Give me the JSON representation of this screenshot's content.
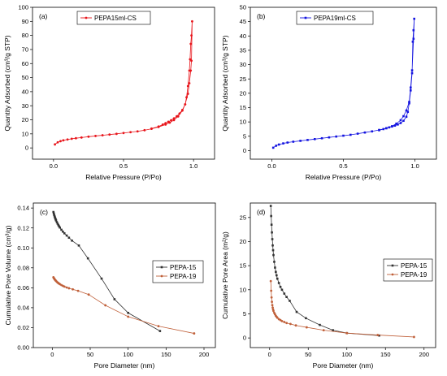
{
  "chart_data": [
    {
      "type": "line",
      "panel_label": "(a)",
      "xlabel": "Relative Pressure (P/Po)",
      "ylabel": "Quantity Adsorbed (cm³/g STP)",
      "xlim": [
        -0.15,
        1.15
      ],
      "ylim": [
        -8,
        100
      ],
      "xticks": [
        0.0,
        0.5,
        1.0
      ],
      "xtick_labels": [
        "0.0",
        "0.5",
        "1.0"
      ],
      "yticks": [
        0,
        10,
        20,
        30,
        40,
        50,
        60,
        70,
        80,
        90,
        100
      ],
      "ytick_labels": [
        "0",
        "10",
        "20",
        "30",
        "40",
        "50",
        "60",
        "70",
        "80",
        "90",
        "100"
      ],
      "legend_position": "top-center",
      "series": [
        {
          "name": "PEPA15ml-CS",
          "color": "#e8151b",
          "marker": "circle",
          "x": [
            0.01,
            0.03,
            0.05,
            0.07,
            0.1,
            0.13,
            0.16,
            0.2,
            0.25,
            0.3,
            0.35,
            0.4,
            0.45,
            0.5,
            0.55,
            0.6,
            0.65,
            0.7,
            0.75,
            0.8,
            0.83,
            0.86,
            0.89,
            0.92,
            0.94,
            0.96,
            0.97,
            0.98,
            0.985,
            0.99,
            0.985,
            0.98,
            0.975,
            0.97,
            0.96,
            0.95,
            0.94,
            0.92,
            0.9,
            0.88,
            0.86,
            0.84,
            0.82,
            0.8,
            0.78,
            0.75,
            0.7
          ],
          "y": [
            2.5,
            4.0,
            4.8,
            5.4,
            6.0,
            6.5,
            6.9,
            7.4,
            8.0,
            8.5,
            9.0,
            9.5,
            10.0,
            10.6,
            11.2,
            11.8,
            12.6,
            13.6,
            14.9,
            16.6,
            18.0,
            19.8,
            22.4,
            26.5,
            31.0,
            38.5,
            46.0,
            55.0,
            62.0,
            90.0,
            80.0,
            74.0,
            63.0,
            55.0,
            44.0,
            36.0,
            31.0,
            27.0,
            24.5,
            22.5,
            21.0,
            19.7,
            18.6,
            17.6,
            16.6,
            15.2,
            13.8
          ]
        }
      ]
    },
    {
      "type": "line",
      "panel_label": "(b)",
      "xlabel": "Relative Pressure (P/Po)",
      "ylabel": "Quantity Adsorbed (cm³/g STP)",
      "xlim": [
        -0.15,
        1.15
      ],
      "ylim": [
        -3,
        50
      ],
      "xticks": [
        0.0,
        0.5,
        1.0
      ],
      "xtick_labels": [
        "0.0",
        "0.5",
        "1.0"
      ],
      "yticks": [
        0,
        5,
        10,
        15,
        20,
        25,
        30,
        35,
        40,
        45,
        50
      ],
      "ytick_labels": [
        "0",
        "5",
        "10",
        "15",
        "20",
        "25",
        "30",
        "35",
        "40",
        "45",
        "50"
      ],
      "legend_position": "top-center",
      "series": [
        {
          "name": "PEPA19ml-CS",
          "color": "#1515e0",
          "marker": "square",
          "x": [
            0.01,
            0.03,
            0.05,
            0.08,
            0.11,
            0.15,
            0.2,
            0.25,
            0.3,
            0.35,
            0.4,
            0.45,
            0.5,
            0.55,
            0.6,
            0.65,
            0.7,
            0.75,
            0.8,
            0.84,
            0.87,
            0.9,
            0.92,
            0.94,
            0.96,
            0.97,
            0.98,
            0.99,
            0.995,
            0.99,
            0.985,
            0.98,
            0.97,
            0.96,
            0.95,
            0.94,
            0.92,
            0.9,
            0.88,
            0.86,
            0.84,
            0.82,
            0.8,
            0.78,
            0.75
          ],
          "y": [
            1.0,
            1.7,
            2.1,
            2.5,
            2.8,
            3.1,
            3.4,
            3.7,
            4.0,
            4.3,
            4.6,
            4.9,
            5.2,
            5.5,
            5.9,
            6.3,
            6.7,
            7.2,
            7.8,
            8.5,
            9.4,
            10.6,
            12.0,
            14.0,
            17.0,
            22.0,
            28.0,
            39.0,
            46.0,
            42.0,
            38.0,
            27.0,
            21.0,
            16.5,
            13.5,
            11.8,
            10.4,
            9.6,
            9.1,
            8.7,
            8.4,
            8.1,
            7.8,
            7.5,
            7.1
          ]
        }
      ]
    },
    {
      "type": "line",
      "panel_label": "(c)",
      "xlabel": "Pore Diameter (nm)",
      "ylabel": "Cumulative Pore Volume (cm³/g)",
      "xlim": [
        -25,
        215
      ],
      "ylim": [
        0.0,
        0.145
      ],
      "xticks": [
        0,
        50,
        100,
        150,
        200
      ],
      "xtick_labels": [
        "0",
        "50",
        "100",
        "150",
        "200"
      ],
      "yticks": [
        0.0,
        0.02,
        0.04,
        0.06,
        0.08,
        0.1,
        0.12,
        0.14
      ],
      "ytick_labels": [
        "0.00",
        "0.02",
        "0.04",
        "0.06",
        "0.08",
        "0.10",
        "0.12",
        "0.14"
      ],
      "legend_position": "middle-right",
      "series": [
        {
          "name": "PEPA-15",
          "color": "#333333",
          "marker": "square",
          "x": [
            1.5,
            2.0,
            2.5,
            3.0,
            3.5,
            4.0,
            4.5,
            5.0,
            6.0,
            7.0,
            8.0,
            9.0,
            10.0,
            12.0,
            14.0,
            16.0,
            19.0,
            22.0,
            26.0,
            35.0,
            47.0,
            65.0,
            82.0,
            100.0,
            142.0
          ],
          "y": [
            0.136,
            0.1345,
            0.133,
            0.1318,
            0.1306,
            0.1295,
            0.1285,
            0.1275,
            0.1258,
            0.1243,
            0.1229,
            0.1216,
            0.1204,
            0.1182,
            0.1163,
            0.1146,
            0.1124,
            0.1102,
            0.1073,
            0.1024,
            0.0895,
            0.0692,
            0.0485,
            0.0348,
            0.0166
          ]
        },
        {
          "name": "PEPA-19",
          "color": "#c0603a",
          "marker": "circle",
          "x": [
            1.5,
            2.0,
            2.5,
            3.0,
            3.5,
            4.0,
            4.5,
            5.0,
            6.0,
            7.0,
            8.0,
            9.0,
            10.0,
            12.0,
            14.0,
            16.0,
            19.0,
            22.0,
            27.0,
            34.0,
            48.0,
            70.0,
            100.0,
            140.0,
            187.0
          ],
          "y": [
            0.0705,
            0.0698,
            0.0692,
            0.0686,
            0.0681,
            0.0676,
            0.0672,
            0.0668,
            0.066,
            0.0653,
            0.0647,
            0.0641,
            0.0636,
            0.0627,
            0.0619,
            0.0612,
            0.0603,
            0.0595,
            0.0584,
            0.0569,
            0.0532,
            0.0424,
            0.031,
            0.0215,
            0.0142
          ]
        }
      ]
    },
    {
      "type": "line",
      "panel_label": "(d)",
      "xlabel": "Pore Diameter (nm)",
      "ylabel": "Cumulative Pore Area (m²/g)",
      "xlim": [
        -25,
        215
      ],
      "ylim": [
        -2,
        28
      ],
      "xticks": [
        0,
        50,
        100,
        150,
        200
      ],
      "xtick_labels": [
        "0",
        "50",
        "100",
        "150",
        "200"
      ],
      "yticks": [
        0,
        5,
        10,
        15,
        20,
        25
      ],
      "ytick_labels": [
        "0",
        "5",
        "10",
        "15",
        "20",
        "25"
      ],
      "legend_position": "middle-right",
      "series": [
        {
          "name": "PEPA-15",
          "color": "#333333",
          "marker": "square",
          "x": [
            1.5,
            2.0,
            2.5,
            3.0,
            3.5,
            4.0,
            4.5,
            5.0,
            6.0,
            7.0,
            8.0,
            9.0,
            10.0,
            12.0,
            14.0,
            16.0,
            19.0,
            22.0,
            26.0,
            35.0,
            47.0,
            65.0,
            82.0,
            100.0,
            142.0
          ],
          "y": [
            27.4,
            25.3,
            23.5,
            21.9,
            20.5,
            19.2,
            18.2,
            17.2,
            15.8,
            14.6,
            13.7,
            13.0,
            12.3,
            11.4,
            10.6,
            10.0,
            9.2,
            8.5,
            7.7,
            5.4,
            4.1,
            2.7,
            1.6,
            1.0,
            0.5
          ]
        },
        {
          "name": "PEPA-19",
          "color": "#c0603a",
          "marker": "circle",
          "x": [
            1.5,
            2.0,
            2.5,
            3.0,
            3.5,
            4.0,
            4.5,
            5.0,
            6.0,
            7.0,
            8.0,
            9.0,
            10.0,
            12.0,
            14.0,
            16.0,
            19.0,
            22.0,
            27.0,
            34.0,
            48.0,
            70.0,
            100.0,
            140.0,
            187.0
          ],
          "y": [
            11.8,
            9.8,
            8.4,
            7.5,
            6.8,
            6.3,
            5.9,
            5.6,
            5.2,
            4.9,
            4.6,
            4.4,
            4.2,
            3.9,
            3.7,
            3.5,
            3.3,
            3.1,
            2.9,
            2.6,
            2.2,
            1.6,
            1.0,
            0.6,
            0.2
          ]
        }
      ]
    }
  ]
}
